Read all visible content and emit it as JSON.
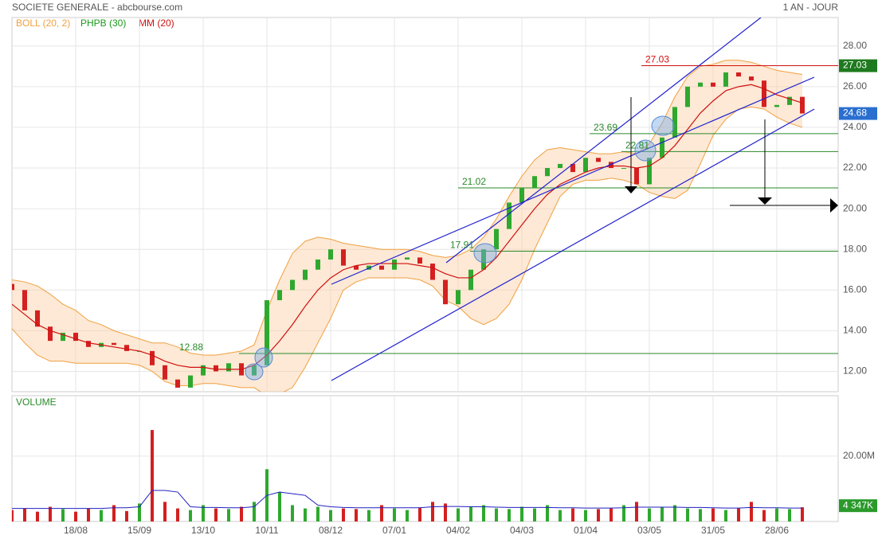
{
  "chart_data": {
    "type": "candlestick",
    "title": "SOCIETE GENERALE - abcbourse.com",
    "period": "1 AN - JOUR",
    "categories": [
      null,
      null,
      null,
      null,
      null,
      "18/08",
      null,
      null,
      null,
      null,
      "15/09",
      null,
      null,
      null,
      null,
      "13/10",
      null,
      null,
      null,
      null,
      "10/11",
      null,
      null,
      null,
      null,
      "08/12",
      null,
      null,
      null,
      null,
      "07/01",
      null,
      null,
      null,
      null,
      "04/02",
      null,
      null,
      null,
      null,
      "04/03",
      null,
      null,
      null,
      null,
      "01/04",
      null,
      null,
      null,
      null,
      "03/05",
      null,
      null,
      null,
      null,
      "31/05",
      null,
      null,
      null,
      null,
      "28/06",
      null,
      null
    ],
    "open": [
      16.3,
      16.0,
      15.0,
      14.2,
      13.5,
      13.9,
      13.5,
      13.2,
      13.4,
      13.3,
      13.0,
      13.0,
      12.3,
      11.6,
      11.2,
      11.8,
      12.3,
      12.0,
      12.4,
      11.8,
      12.3,
      15.5,
      16.0,
      16.5,
      17.0,
      17.5,
      18.0,
      17.2,
      17.0,
      17.2,
      17.0,
      17.5,
      17.6,
      17.3,
      16.5,
      15.3,
      16.0,
      17.0,
      18.0,
      19.0,
      20.3,
      21.0,
      21.6,
      22.0,
      22.2,
      21.8,
      22.5,
      22.3,
      22.0,
      22.0,
      21.2,
      22.5,
      23.5,
      25.0,
      26.0,
      26.2,
      26.0,
      26.7,
      26.5,
      26.3,
      25.0,
      25.1,
      25.5
    ],
    "close": [
      16.0,
      15.0,
      14.2,
      13.5,
      13.9,
      13.5,
      13.2,
      13.4,
      13.3,
      13.0,
      13.0,
      12.3,
      11.6,
      11.2,
      11.8,
      12.3,
      12.0,
      12.4,
      11.8,
      12.3,
      15.5,
      16.0,
      16.5,
      17.0,
      17.5,
      18.0,
      17.2,
      17.0,
      17.2,
      17.0,
      17.5,
      17.6,
      17.3,
      16.5,
      15.3,
      16.0,
      17.0,
      18.0,
      19.0,
      20.3,
      21.0,
      21.6,
      22.0,
      22.2,
      21.8,
      22.5,
      22.3,
      22.0,
      22.0,
      21.2,
      22.5,
      23.5,
      25.0,
      26.0,
      26.2,
      26.0,
      26.7,
      26.5,
      26.3,
      25.0,
      25.1,
      25.5,
      24.68
    ],
    "up_color": "#2ea82e",
    "down_color": "#d42020",
    "ylim": [
      11.0,
      29.4
    ],
    "yticks": [
      {
        "value": 12,
        "label": "12.00"
      },
      {
        "value": 14,
        "label": "14.00"
      },
      {
        "value": 16,
        "label": "16.00"
      },
      {
        "value": 18,
        "label": "18.00"
      },
      {
        "value": 20,
        "label": "20.00"
      },
      {
        "value": 22,
        "label": "22.00"
      },
      {
        "value": 24,
        "label": "24.00"
      },
      {
        "value": 26,
        "label": "26.00"
      },
      {
        "value": 28,
        "label": "28.00"
      }
    ],
    "grid": true,
    "indicators": [
      {
        "name": "BOLL (20, 2)",
        "color": "#f0a040",
        "upper": [
          16.5,
          16.4,
          16.2,
          15.8,
          15.3,
          15.0,
          14.5,
          14.3,
          14.0,
          13.8,
          13.6,
          13.4,
          13.4,
          13.2,
          12.9,
          12.8,
          12.8,
          12.9,
          13.0,
          13.3,
          15.0,
          16.5,
          17.8,
          18.4,
          18.6,
          18.5,
          18.3,
          18.2,
          18.1,
          18.0,
          18.0,
          18.0,
          17.9,
          17.7,
          17.6,
          17.7,
          18.0,
          18.6,
          19.5,
          20.6,
          21.6,
          22.4,
          22.9,
          23.0,
          22.9,
          22.8,
          22.7,
          22.7,
          22.8,
          22.7,
          23.2,
          24.2,
          25.5,
          26.5,
          27.0,
          27.1,
          27.3,
          27.3,
          27.2,
          27.0,
          26.8,
          26.7,
          26.6
        ],
        "lower": [
          14.1,
          13.4,
          12.8,
          12.5,
          12.5,
          12.4,
          12.4,
          12.4,
          12.4,
          12.4,
          12.3,
          12.0,
          11.5,
          11.3,
          11.3,
          11.4,
          11.4,
          11.3,
          11.2,
          11.2,
          10.8,
          10.9,
          11.2,
          12.2,
          13.4,
          14.6,
          16.0,
          16.4,
          16.6,
          16.6,
          16.6,
          16.6,
          16.5,
          16.2,
          15.5,
          15.2,
          14.6,
          14.3,
          14.6,
          15.3,
          16.5,
          18.0,
          19.3,
          20.6,
          21.2,
          21.4,
          21.4,
          21.5,
          21.4,
          21.2,
          20.8,
          20.6,
          20.5,
          20.9,
          22.2,
          23.6,
          24.4,
          24.9,
          25.0,
          24.9,
          24.5,
          24.2,
          24.0
        ]
      },
      {
        "name": "PHPB (30)",
        "color": "#1a9a1a"
      },
      {
        "name": "MM (20)",
        "color": "#d01010",
        "values": [
          15.3,
          14.8,
          14.3,
          14.0,
          13.8,
          13.6,
          13.4,
          13.3,
          13.2,
          13.1,
          13.0,
          12.8,
          12.5,
          12.3,
          12.2,
          12.2,
          12.1,
          12.1,
          12.1,
          12.3,
          12.8,
          13.5,
          14.3,
          15.2,
          16.0,
          16.6,
          17.0,
          17.2,
          17.3,
          17.3,
          17.3,
          17.3,
          17.2,
          17.1,
          16.8,
          16.6,
          16.6,
          17.0,
          17.6,
          18.4,
          19.2,
          20.0,
          20.7,
          21.2,
          21.5,
          21.8,
          22.0,
          22.1,
          22.1,
          22.0,
          22.1,
          22.5,
          23.1,
          23.9,
          24.7,
          25.3,
          25.8,
          26.0,
          26.1,
          25.9,
          25.6,
          25.4,
          25.2
        ]
      }
    ],
    "levels": [
      {
        "value": 12.88,
        "color": "#2a8a2a"
      },
      {
        "value": 17.91,
        "color": "#2a8a2a"
      },
      {
        "value": 21.02,
        "color": "#2a8a2a"
      },
      {
        "value": 22.81,
        "color": "#2a8a2a"
      },
      {
        "value": 23.69,
        "color": "#2a8a2a"
      },
      {
        "value": 27.03,
        "color": "#d01010"
      }
    ],
    "volume": {
      "label": "VOLUME",
      "values": [
        3.5,
        4,
        3,
        4.5,
        3.8,
        3,
        4,
        3.5,
        5,
        3.2,
        5.5,
        28,
        6,
        4,
        3.5,
        5,
        4,
        3.8,
        4.5,
        6,
        16,
        9,
        5,
        4,
        4.5,
        3.5,
        4,
        3.8,
        3.5,
        5,
        4,
        3.5,
        4.2,
        6,
        5.5,
        4,
        4.5,
        5,
        4,
        3.8,
        4.5,
        4,
        5,
        3.5,
        4,
        3.5,
        3.8,
        4,
        5,
        6,
        4,
        4.5,
        5,
        4,
        3.8,
        4,
        3.5,
        4,
        6,
        3.5,
        4,
        3.8,
        4.347
      ],
      "average": [
        4,
        4,
        4,
        4,
        4,
        4,
        4,
        4,
        4.2,
        4.2,
        4.5,
        9.5,
        9.5,
        9,
        4.5,
        4.3,
        4.3,
        4.2,
        4.2,
        4.5,
        8,
        9,
        8.5,
        8,
        5,
        4.5,
        4.3,
        4.2,
        4.2,
        4.2,
        4.2,
        4.2,
        4.2,
        4.5,
        4.6,
        4.6,
        4.5,
        4.5,
        4.4,
        4.3,
        4.3,
        4.3,
        4.3,
        4.2,
        4.2,
        4.1,
        4.1,
        4.1,
        4.2,
        4.4,
        4.4,
        4.4,
        4.4,
        4.3,
        4.3,
        4.2,
        4.1,
        4.1,
        4.3,
        4.2,
        4.2,
        4.1,
        4.1
      ],
      "average_color": "#2020c0",
      "last_value_label": "4 347K",
      "ylim": [
        0,
        38.5
      ],
      "yticks": [
        {
          "value": 20,
          "label": "20.00M"
        }
      ]
    }
  }
}
